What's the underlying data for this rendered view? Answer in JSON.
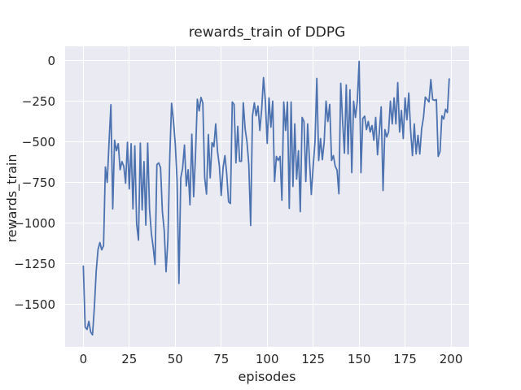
{
  "figure": {
    "title": "rewards_train of DDPG",
    "xlabel": "episodes",
    "ylabel": "rewards_train"
  },
  "chart_data": {
    "type": "line",
    "title": "rewards_train of DDPG",
    "xlabel": "episodes",
    "ylabel": "rewards_train",
    "grid": true,
    "legend": null,
    "style": "seaborn-darkgrid",
    "plot_bg_color": "#eaeaf2",
    "grid_color": "#ffffff",
    "line_color": "#4c72b0",
    "text_color": "#262626",
    "xlim": [
      -9.9,
      209.7
    ],
    "ylim": [
      -1762.5,
      87.5
    ],
    "x_ticks": [
      0,
      25,
      50,
      75,
      100,
      125,
      150,
      175,
      200
    ],
    "x_tick_labels": [
      "0",
      "25",
      "50",
      "75",
      "100",
      "125",
      "150",
      "175",
      "200"
    ],
    "y_ticks": [
      0,
      -250,
      -500,
      -750,
      -1000,
      -1250,
      -1500
    ],
    "y_tick_labels": [
      "0",
      "−250",
      "−500",
      "−750",
      "−1000",
      "−1250",
      "−1500"
    ],
    "series": [
      {
        "name": "rewards_train",
        "x_start": 0,
        "x_step": 1,
        "values": [
          -1265,
          -1640,
          -1655,
          -1605,
          -1671,
          -1688,
          -1520,
          -1297,
          -1163,
          -1120,
          -1165,
          -1140,
          -655,
          -750,
          -500,
          -272,
          -913,
          -490,
          -555,
          -512,
          -672,
          -622,
          -650,
          -755,
          -503,
          -790,
          -512,
          -913,
          -525,
          -1005,
          -1105,
          -508,
          -920,
          -622,
          -1013,
          -508,
          -913,
          -1063,
          -1150,
          -1255,
          -640,
          -630,
          -660,
          -930,
          -1046,
          -1300,
          -1100,
          -600,
          -263,
          -370,
          -512,
          -740,
          -1372,
          -722,
          -663,
          -520,
          -772,
          -672,
          -888,
          -453,
          -838,
          -585,
          -238,
          -310,
          -227,
          -262,
          -722,
          -822,
          -455,
          -722,
          -505,
          -530,
          -390,
          -560,
          -650,
          -830,
          -660,
          -585,
          -700,
          -870,
          -880,
          -255,
          -270,
          -630,
          -405,
          -620,
          -620,
          -260,
          -420,
          -500,
          -640,
          -1015,
          -340,
          -260,
          -340,
          -280,
          -430,
          -300,
          -105,
          -250,
          -510,
          -230,
          -410,
          -250,
          -745,
          -590,
          -615,
          -590,
          -860,
          -255,
          -430,
          -255,
          -910,
          -255,
          -775,
          -390,
          -730,
          -555,
          -930,
          -350,
          -375,
          -745,
          -390,
          -615,
          -825,
          -650,
          -500,
          -110,
          -615,
          -480,
          -610,
          -500,
          -250,
          -375,
          -270,
          -615,
          -585,
          -650,
          -675,
          -820,
          -140,
          -370,
          -570,
          -150,
          -575,
          -180,
          -690,
          -250,
          -350,
          -250,
          -5,
          -690,
          -357,
          -342,
          -425,
          -375,
          -440,
          -400,
          -490,
          -350,
          -580,
          -440,
          -285,
          -800,
          -425,
          -470,
          -440,
          -250,
          -390,
          -230,
          -390,
          -136,
          -440,
          -307,
          -480,
          -230,
          -365,
          -200,
          -430,
          -585,
          -390,
          -575,
          -460,
          -575,
          -420,
          -350,
          -225,
          -240,
          -255,
          -117,
          -240,
          -245,
          -240,
          -590,
          -560,
          -340,
          -360,
          -300,
          -320,
          -113
        ]
      }
    ]
  }
}
